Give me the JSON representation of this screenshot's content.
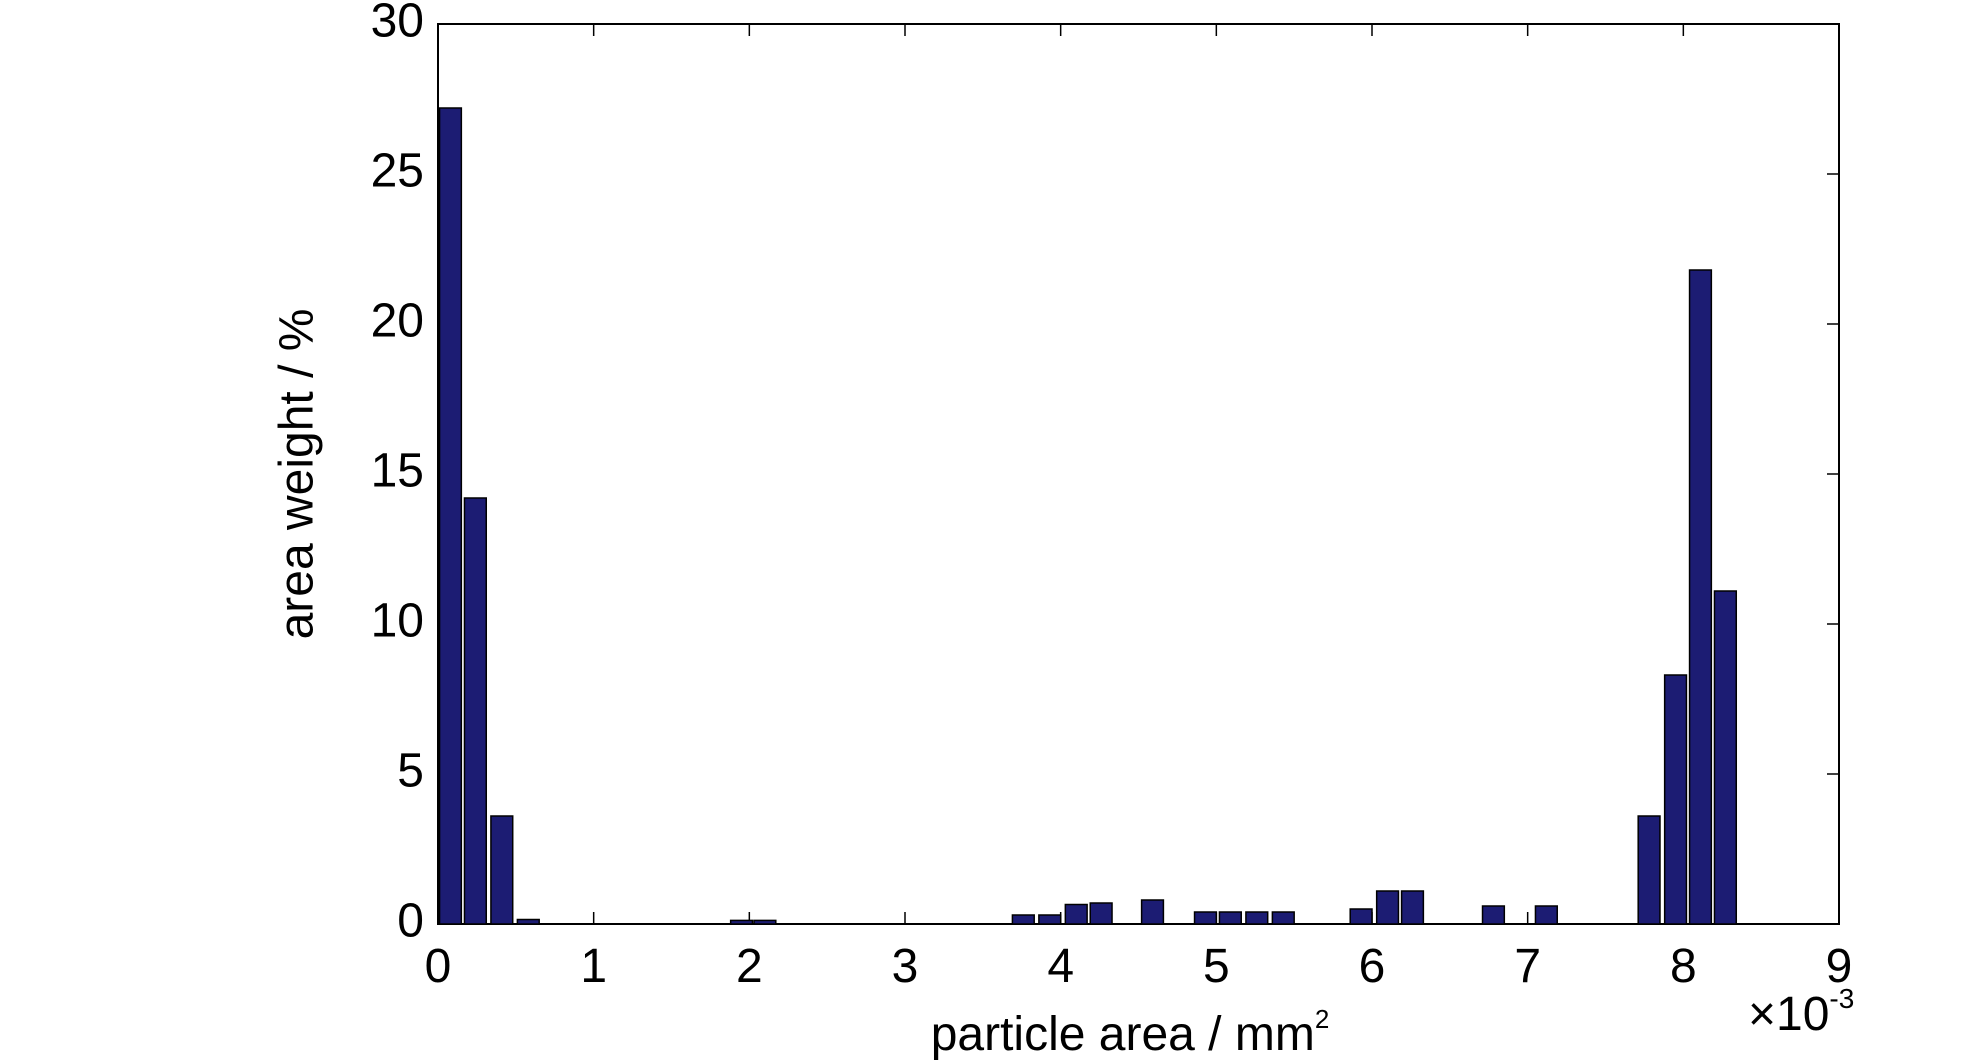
{
  "chart_data": {
    "type": "bar",
    "xlabel": "particle area / mm",
    "xlabel_superscript": "2",
    "ylabel": "area weight / %",
    "x_multiplier": "×10",
    "x_multiplier_exponent": "-3",
    "x": [
      0.08,
      0.24,
      0.41,
      0.58,
      1.95,
      2.1,
      3.76,
      3.93,
      4.1,
      4.26,
      4.59,
      4.93,
      5.09,
      5.26,
      5.43,
      5.93,
      6.1,
      6.26,
      6.78,
      7.12,
      7.78,
      7.95,
      8.11,
      8.27
    ],
    "values": [
      27.2,
      14.2,
      3.6,
      0.15,
      0.12,
      0.12,
      0.3,
      0.3,
      0.65,
      0.7,
      0.8,
      0.4,
      0.4,
      0.4,
      0.4,
      0.5,
      1.1,
      1.1,
      0.6,
      0.6,
      3.6,
      8.3,
      21.8,
      11.1
    ],
    "color": "#1c1c73",
    "xlim": [
      0,
      9
    ],
    "xticks": [
      0,
      1,
      2,
      3,
      4,
      5,
      6,
      7,
      8,
      9
    ],
    "ylim": [
      0,
      30
    ],
    "yticks": [
      0,
      5,
      10,
      15,
      20,
      25,
      30
    ],
    "grid": false
  }
}
